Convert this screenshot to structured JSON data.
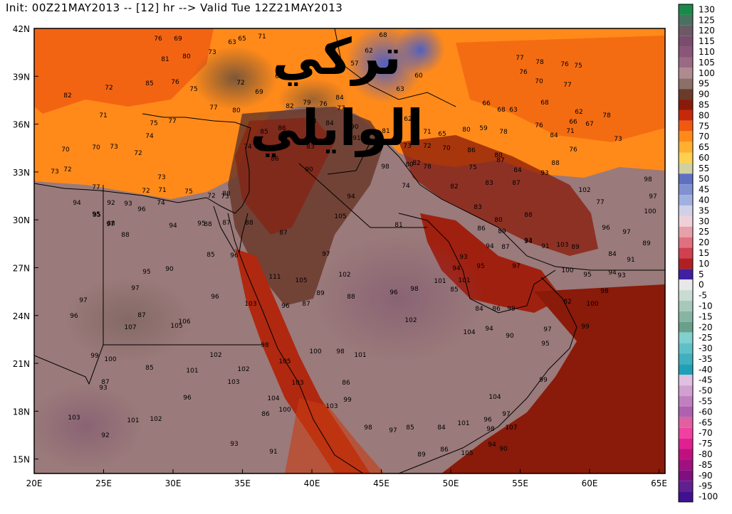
{
  "header": {
    "title": "Init: 00Z21MAY2013 -- [12] hr --> Valid Tue 12Z21MAY2013"
  },
  "watermark": {
    "text": "تركي الوايلي"
  },
  "axes": {
    "x_ticks": [
      "20E",
      "25E",
      "30E",
      "35E",
      "40E",
      "45E",
      "50E",
      "55E",
      "60E",
      "65E"
    ],
    "y_ticks": [
      "42N",
      "39N",
      "36N",
      "33N",
      "30N",
      "27N",
      "24N",
      "21N",
      "18N",
      "15N"
    ]
  },
  "legend": {
    "labels": [
      "130",
      "125",
      "120",
      "115",
      "110",
      "105",
      "100",
      "95",
      "90",
      "85",
      "80",
      "75",
      "70",
      "65",
      "60",
      "55",
      "50",
      "45",
      "40",
      "35",
      "30",
      "25",
      "20",
      "15",
      "10",
      "5",
      "0",
      "-5",
      "-10",
      "-15",
      "-20",
      "-25",
      "-30",
      "-35",
      "-40",
      "-45",
      "-50",
      "-55",
      "-60",
      "-65",
      "-70",
      "-75",
      "-80",
      "-85",
      "-90",
      "-95",
      "-100"
    ],
    "colors": [
      "#1a8a4a",
      "#4a7060",
      "#6b5a66",
      "#7a4c6e",
      "#8a5578",
      "#9a6a85",
      "#b08a90",
      "#8a7068",
      "#6a3a2a",
      "#8a1a0a",
      "#c8280a",
      "#f05a10",
      "#ff8a1a",
      "#ffb030",
      "#ffd050",
      "#d0d0a0",
      "#6070c0",
      "#8090d0",
      "#a0b0e0",
      "#d0d0e8",
      "#f0d0d8",
      "#e8a0a8",
      "#e07080",
      "#d04050",
      "#b02020",
      "#4020a0",
      "#e8e8e8",
      "#c8dcd4",
      "#a8c8bc",
      "#88b4a4",
      "#68a08c",
      "#80d0d0",
      "#60c0c8",
      "#40b0c0",
      "#20a0b8",
      "#e0c0e0",
      "#d0a0d0",
      "#c080c0",
      "#b060b0",
      "#e060a0",
      "#f040a0",
      "#e02090",
      "#c01080",
      "#a01080",
      "#801080",
      "#602090",
      "#401090"
    ]
  },
  "values": [
    {
      "t": "76"
    },
    {
      "t": "69"
    },
    {
      "t": "68"
    },
    {
      "t": "71"
    },
    {
      "t": "65"
    },
    {
      "t": "63"
    },
    {
      "t": "80"
    },
    {
      "t": "73"
    },
    {
      "t": "81"
    },
    {
      "t": "62"
    },
    {
      "t": "57"
    },
    {
      "t": "77"
    },
    {
      "t": "78"
    },
    {
      "t": "76"
    },
    {
      "t": "75"
    },
    {
      "t": "82"
    },
    {
      "t": "85"
    },
    {
      "t": "76"
    },
    {
      "t": "75"
    },
    {
      "t": "72"
    },
    {
      "t": "69"
    },
    {
      "t": "67"
    },
    {
      "t": "60"
    },
    {
      "t": "76"
    },
    {
      "t": "70"
    },
    {
      "t": "77"
    },
    {
      "t": "72"
    },
    {
      "t": "84"
    },
    {
      "t": "63"
    },
    {
      "t": "71"
    },
    {
      "t": "77"
    },
    {
      "t": "82"
    },
    {
      "t": "79"
    },
    {
      "t": "76"
    },
    {
      "t": "77"
    },
    {
      "t": "66"
    },
    {
      "t": "68"
    },
    {
      "t": "63"
    },
    {
      "t": "68"
    },
    {
      "t": "62"
    },
    {
      "t": "78"
    },
    {
      "t": "75"
    },
    {
      "t": "77"
    },
    {
      "t": "80"
    },
    {
      "t": "86"
    },
    {
      "t": "83"
    },
    {
      "t": "84"
    },
    {
      "t": "90"
    },
    {
      "t": "81"
    },
    {
      "t": "62"
    },
    {
      "t": "71"
    },
    {
      "t": "65"
    },
    {
      "t": "80"
    },
    {
      "t": "59"
    },
    {
      "t": "78"
    },
    {
      "t": "76"
    },
    {
      "t": "84"
    },
    {
      "t": "71"
    },
    {
      "t": "66"
    },
    {
      "t": "67"
    },
    {
      "t": "74"
    },
    {
      "t": "85"
    },
    {
      "t": "91"
    },
    {
      "t": "93"
    },
    {
      "t": "73"
    },
    {
      "t": "72"
    },
    {
      "t": "70"
    },
    {
      "t": "86"
    },
    {
      "t": "80"
    },
    {
      "t": "76"
    },
    {
      "t": "73"
    },
    {
      "t": "70"
    },
    {
      "t": "70"
    },
    {
      "t": "73"
    },
    {
      "t": "72"
    },
    {
      "t": "74"
    },
    {
      "t": "86"
    },
    {
      "t": "83"
    },
    {
      "t": "87"
    },
    {
      "t": "84"
    },
    {
      "t": "88"
    },
    {
      "t": "93"
    },
    {
      "t": "73"
    },
    {
      "t": "72"
    },
    {
      "t": "73"
    },
    {
      "t": "98"
    },
    {
      "t": "90"
    },
    {
      "t": "78"
    },
    {
      "t": "75"
    },
    {
      "t": "80"
    },
    {
      "t": "82"
    },
    {
      "t": "77"
    },
    {
      "t": "72"
    },
    {
      "t": "71"
    },
    {
      "t": "75"
    },
    {
      "t": "73"
    },
    {
      "t": "72"
    },
    {
      "t": "88"
    },
    {
      "t": "87"
    },
    {
      "t": "102"
    },
    {
      "t": "74"
    },
    {
      "t": "82"
    },
    {
      "t": "83"
    },
    {
      "t": "98"
    },
    {
      "t": "94"
    },
    {
      "t": "92"
    },
    {
      "t": "93"
    },
    {
      "t": "96"
    },
    {
      "t": "74"
    },
    {
      "t": "94"
    },
    {
      "t": "95"
    },
    {
      "t": "77"
    },
    {
      "t": "97"
    },
    {
      "t": "100"
    },
    {
      "t": "95"
    },
    {
      "t": "97"
    },
    {
      "t": "94"
    },
    {
      "t": "88"
    },
    {
      "t": "87"
    },
    {
      "t": "88"
    },
    {
      "t": "105"
    },
    {
      "t": "81"
    },
    {
      "t": "83"
    },
    {
      "t": "80"
    },
    {
      "t": "88"
    },
    {
      "t": "96"
    },
    {
      "t": "97"
    },
    {
      "t": "88"
    },
    {
      "t": "88"
    },
    {
      "t": "95"
    },
    {
      "t": "87"
    },
    {
      "t": "86"
    },
    {
      "t": "89"
    },
    {
      "t": "94"
    },
    {
      "t": "91"
    },
    {
      "t": "103"
    },
    {
      "t": "89"
    },
    {
      "t": "84"
    },
    {
      "t": "89"
    },
    {
      "t": "85"
    },
    {
      "t": "96"
    },
    {
      "t": "97"
    },
    {
      "t": "93"
    },
    {
      "t": "94"
    },
    {
      "t": "87"
    },
    {
      "t": "93"
    },
    {
      "t": "97"
    },
    {
      "t": "94"
    },
    {
      "t": "95"
    },
    {
      "t": "100"
    },
    {
      "t": "95"
    },
    {
      "t": "94"
    },
    {
      "t": "91"
    },
    {
      "t": "95"
    },
    {
      "t": "90"
    },
    {
      "t": "111"
    },
    {
      "t": "102"
    },
    {
      "t": "105"
    },
    {
      "t": "101"
    },
    {
      "t": "101"
    },
    {
      "t": "98"
    },
    {
      "t": "96"
    },
    {
      "t": "98"
    },
    {
      "t": "93"
    },
    {
      "t": "97"
    },
    {
      "t": "96"
    },
    {
      "t": "89"
    },
    {
      "t": "88"
    },
    {
      "t": "87"
    },
    {
      "t": "85"
    },
    {
      "t": "84"
    },
    {
      "t": "86"
    },
    {
      "t": "99"
    },
    {
      "t": "82"
    },
    {
      "t": "100"
    },
    {
      "t": "97"
    },
    {
      "t": "103"
    },
    {
      "t": "96"
    },
    {
      "t": "87"
    },
    {
      "t": "102"
    },
    {
      "t": "97"
    },
    {
      "t": "99"
    },
    {
      "t": "96"
    },
    {
      "t": "107"
    },
    {
      "t": "106"
    },
    {
      "t": "105"
    },
    {
      "t": "104"
    },
    {
      "t": "94"
    },
    {
      "t": "90"
    },
    {
      "t": "95"
    },
    {
      "t": "98"
    },
    {
      "t": "100"
    },
    {
      "t": "98"
    },
    {
      "t": "101"
    },
    {
      "t": "99"
    },
    {
      "t": "100"
    },
    {
      "t": "102"
    },
    {
      "t": "85"
    },
    {
      "t": "101"
    },
    {
      "t": "102"
    },
    {
      "t": "105"
    },
    {
      "t": "87"
    },
    {
      "t": "93"
    },
    {
      "t": "103"
    },
    {
      "t": "103"
    },
    {
      "t": "86"
    },
    {
      "t": "99"
    },
    {
      "t": "96"
    },
    {
      "t": "99"
    },
    {
      "t": "104"
    },
    {
      "t": "100"
    },
    {
      "t": "103"
    },
    {
      "t": "104"
    },
    {
      "t": "103"
    },
    {
      "t": "101"
    },
    {
      "t": "102"
    },
    {
      "t": "86"
    },
    {
      "t": "96"
    },
    {
      "t": "97"
    },
    {
      "t": "98"
    },
    {
      "t": "97"
    },
    {
      "t": "85"
    },
    {
      "t": "84"
    },
    {
      "t": "101"
    },
    {
      "t": "107"
    },
    {
      "t": "98"
    },
    {
      "t": "92"
    },
    {
      "t": "93"
    },
    {
      "t": "91"
    },
    {
      "t": "89"
    },
    {
      "t": "86"
    },
    {
      "t": "105"
    },
    {
      "t": "94"
    },
    {
      "t": "90"
    }
  ]
}
